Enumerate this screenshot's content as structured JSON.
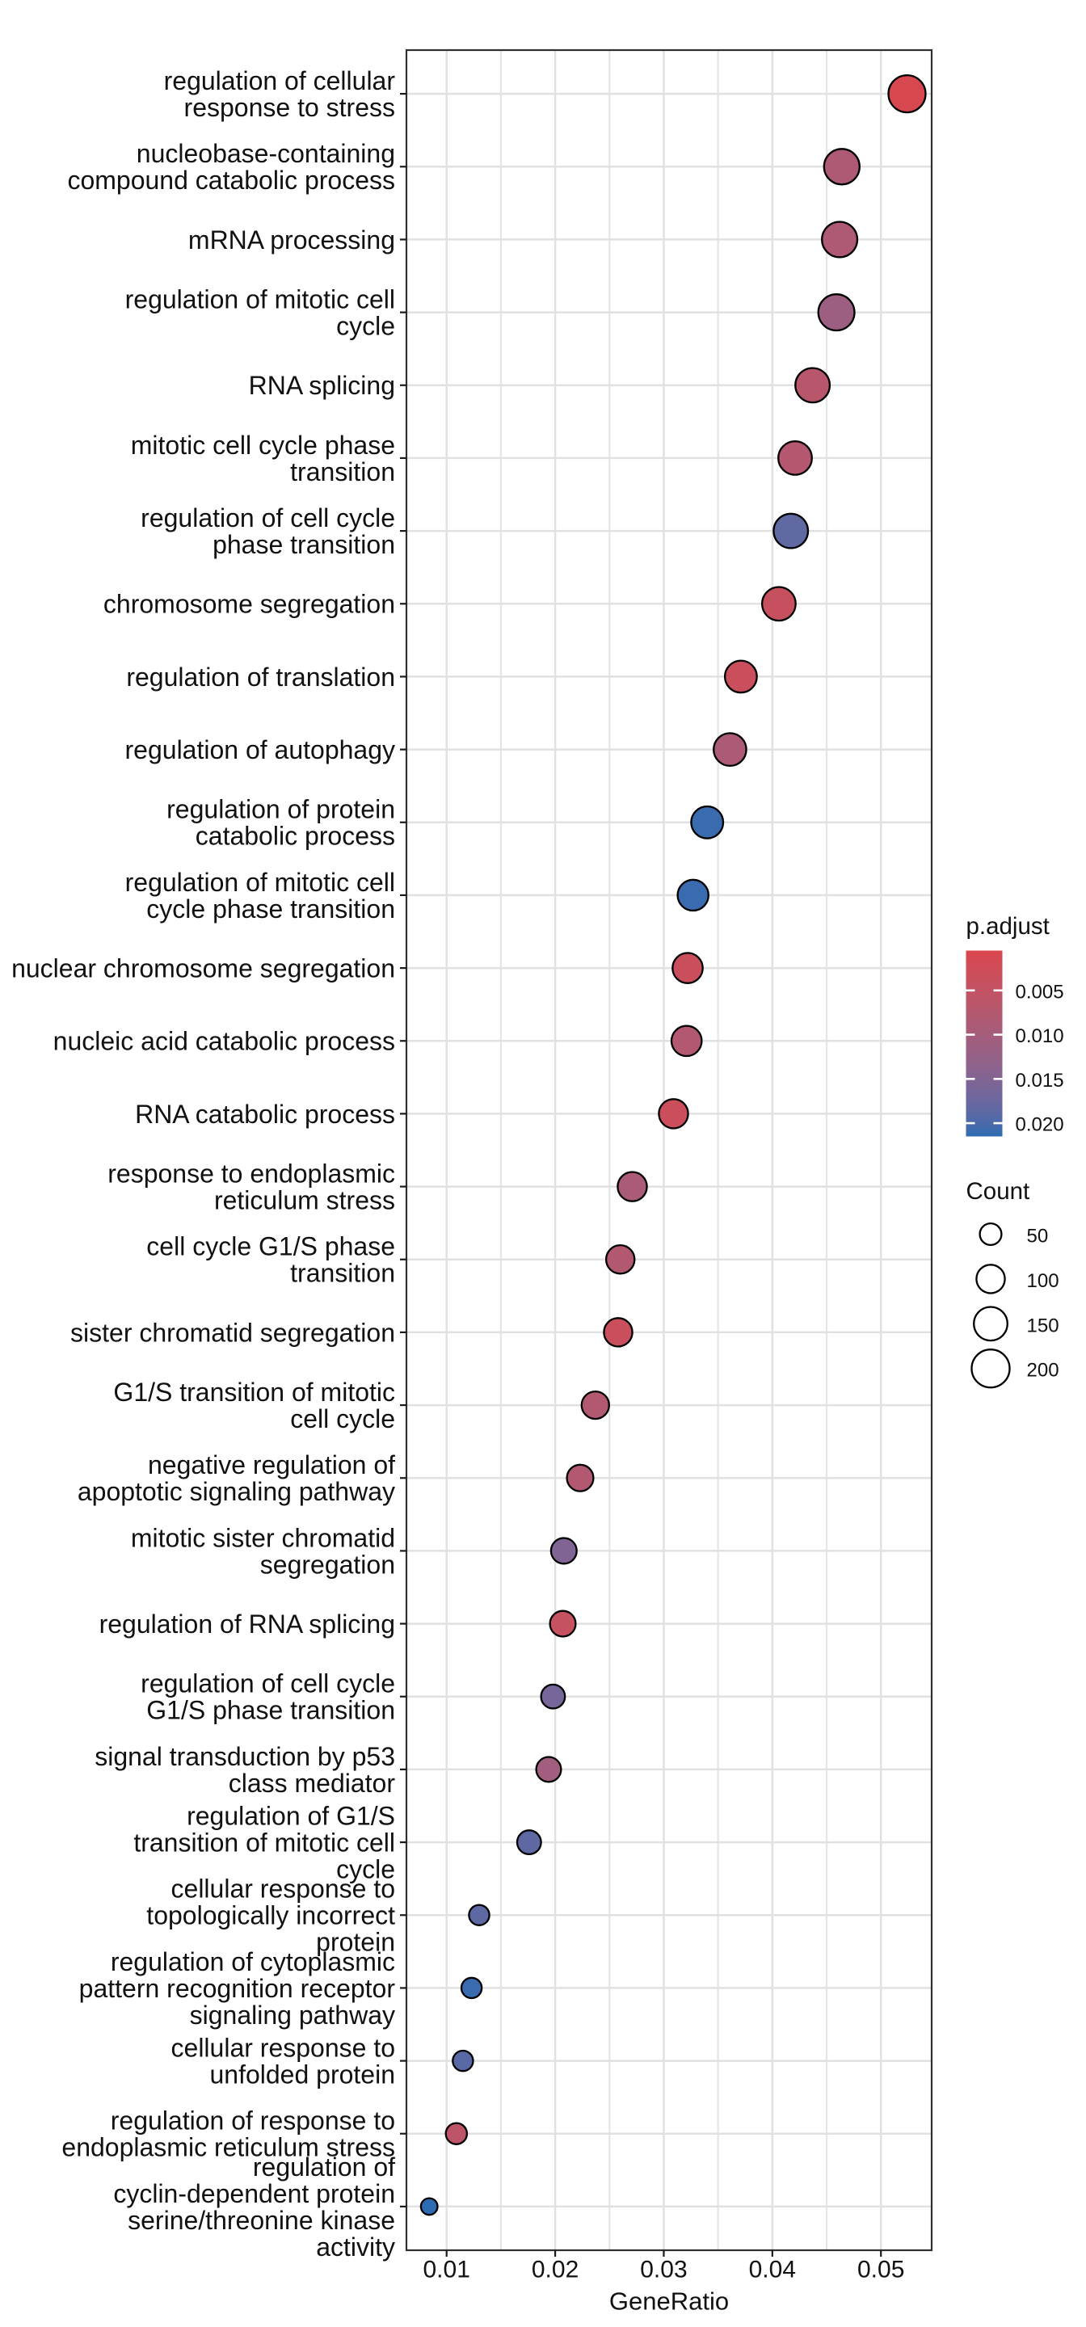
{
  "figure": {
    "background_color": "#ffffff",
    "panel_border_color": "#2f2f2f",
    "grid_major_color": "#e1e1e1",
    "grid_minor_color": "#e5e5e5",
    "tick_color": "#1a1a1a",
    "text_color": "#111111",
    "point_outline_color": "#000000"
  },
  "chart_data": {
    "type": "scatter",
    "subtype": "go-enrichment-dotplot",
    "title": "",
    "xlabel": "GeneRatio",
    "ylabel": "",
    "xlim": [
      0.006301,
      0.054673
    ],
    "x_major_ticks": [
      0.01,
      0.02,
      0.03,
      0.04,
      0.05
    ],
    "x_tick_labels": [
      "0.01",
      "0.02",
      "0.03",
      "0.04",
      "0.05"
    ],
    "x_minor_gridlines": [
      0.015,
      0.025,
      0.035,
      0.045
    ],
    "grid": "on",
    "legend_position": "right",
    "points": [
      {
        "label": "regulation of cellular response to stress",
        "lines": [
          "regulation of cellular",
          "response to stress"
        ],
        "gene_ratio": 0.0524,
        "count": 190,
        "p_adjust": 0.0009
      },
      {
        "label": "nucleobase-containing compound catabolic process",
        "lines": [
          "nucleobase-containing",
          "compound catabolic process"
        ],
        "gene_ratio": 0.0464,
        "count": 170,
        "p_adjust": 0.0085
      },
      {
        "label": "mRNA processing",
        "lines": [
          "mRNA processing"
        ],
        "gene_ratio": 0.0462,
        "count": 168,
        "p_adjust": 0.0085
      },
      {
        "label": "regulation of mitotic cell cycle",
        "lines": [
          "regulation of mitotic cell",
          "cycle"
        ],
        "gene_ratio": 0.0459,
        "count": 178,
        "p_adjust": 0.0114
      },
      {
        "label": "RNA splicing",
        "lines": [
          "RNA splicing"
        ],
        "gene_ratio": 0.0437,
        "count": 158,
        "p_adjust": 0.0068
      },
      {
        "label": "mitotic cell cycle phase transition",
        "lines": [
          "mitotic cell cycle phase",
          "transition"
        ],
        "gene_ratio": 0.0421,
        "count": 150,
        "p_adjust": 0.0074
      },
      {
        "label": "regulation of cell cycle phase transition",
        "lines": [
          "regulation of cell cycle",
          "phase transition"
        ],
        "gene_ratio": 0.0417,
        "count": 158,
        "p_adjust": 0.0184
      },
      {
        "label": "chromosome segregation",
        "lines": [
          "chromosome segregation"
        ],
        "gene_ratio": 0.0406,
        "count": 150,
        "p_adjust": 0.0041
      },
      {
        "label": "regulation of translation",
        "lines": [
          "regulation of translation"
        ],
        "gene_ratio": 0.0371,
        "count": 132,
        "p_adjust": 0.0037
      },
      {
        "label": "regulation of autophagy",
        "lines": [
          "regulation of autophagy"
        ],
        "gene_ratio": 0.0361,
        "count": 140,
        "p_adjust": 0.0089
      },
      {
        "label": "regulation of protein catabolic process",
        "lines": [
          "regulation of protein",
          "catabolic process"
        ],
        "gene_ratio": 0.034,
        "count": 132,
        "p_adjust": 0.0209
      },
      {
        "label": "regulation of mitotic cell cycle phase transition",
        "lines": [
          "regulation of mitotic cell",
          "cycle phase transition"
        ],
        "gene_ratio": 0.0327,
        "count": 122,
        "p_adjust": 0.0209
      },
      {
        "label": "nuclear chromosome segregation",
        "lines": [
          "nuclear chromosome segregation"
        ],
        "gene_ratio": 0.0322,
        "count": 115,
        "p_adjust": 0.0037
      },
      {
        "label": "nucleic acid catabolic process",
        "lines": [
          "nucleic acid catabolic process"
        ],
        "gene_ratio": 0.0321,
        "count": 115,
        "p_adjust": 0.0079
      },
      {
        "label": "RNA catabolic process",
        "lines": [
          "RNA catabolic process"
        ],
        "gene_ratio": 0.0309,
        "count": 106,
        "p_adjust": 0.0034
      },
      {
        "label": "response to endoplasmic reticulum stress",
        "lines": [
          "response to endoplasmic",
          "reticulum stress"
        ],
        "gene_ratio": 0.0271,
        "count": 106,
        "p_adjust": 0.0093
      },
      {
        "label": "cell cycle G1/S phase transition",
        "lines": [
          "cell cycle G1/S phase",
          "transition"
        ],
        "gene_ratio": 0.026,
        "count": 99,
        "p_adjust": 0.0079
      },
      {
        "label": "sister chromatid segregation",
        "lines": [
          "sister chromatid segregation"
        ],
        "gene_ratio": 0.0258,
        "count": 99,
        "p_adjust": 0.0037
      },
      {
        "label": "G1/S transition of mitotic cell cycle",
        "lines": [
          "G1/S transition of mitotic",
          "cell cycle"
        ],
        "gene_ratio": 0.0237,
        "count": 91,
        "p_adjust": 0.0079
      },
      {
        "label": "negative regulation of apoptotic signaling pathway",
        "lines": [
          "negative regulation of",
          "apoptotic signaling pathway"
        ],
        "gene_ratio": 0.0223,
        "count": 84,
        "p_adjust": 0.0079
      },
      {
        "label": "mitotic sister chromatid segregation",
        "lines": [
          "mitotic sister chromatid",
          "segregation"
        ],
        "gene_ratio": 0.0208,
        "count": 77,
        "p_adjust": 0.0152
      },
      {
        "label": "regulation of RNA splicing",
        "lines": [
          "regulation of RNA splicing"
        ],
        "gene_ratio": 0.0207,
        "count": 77,
        "p_adjust": 0.0043
      },
      {
        "label": "regulation of cell cycle G1/S phase transition",
        "lines": [
          "regulation of cell cycle",
          "G1/S phase transition"
        ],
        "gene_ratio": 0.0198,
        "count": 64,
        "p_adjust": 0.0163
      },
      {
        "label": "signal transduction by p53 class mediator",
        "lines": [
          "signal transduction by p53",
          "class mediator"
        ],
        "gene_ratio": 0.0194,
        "count": 71,
        "p_adjust": 0.0106
      },
      {
        "label": "regulation of G1/S transition of mitotic cell cycle",
        "lines": [
          "regulation of G1/S",
          "transition of mitotic cell",
          "cycle"
        ],
        "gene_ratio": 0.0176,
        "count": 64,
        "p_adjust": 0.0186
      },
      {
        "label": "cellular response to topologically incorrect protein",
        "lines": [
          "cellular response to",
          "topologically incorrect",
          "protein"
        ],
        "gene_ratio": 0.013,
        "count": 42,
        "p_adjust": 0.0186
      },
      {
        "label": "regulation of cytoplasmic pattern recognition receptor signaling pathway",
        "lines": [
          "regulation of cytoplasmic",
          "pattern recognition receptor",
          "signaling pathway"
        ],
        "gene_ratio": 0.0123,
        "count": 42,
        "p_adjust": 0.0209
      },
      {
        "label": "cellular response to unfolded protein",
        "lines": [
          "cellular response to",
          "unfolded protein"
        ],
        "gene_ratio": 0.0115,
        "count": 42,
        "p_adjust": 0.019
      },
      {
        "label": "regulation of response to endoplasmic reticulum stress",
        "lines": [
          "regulation of response to",
          "endoplasmic reticulum stress"
        ],
        "gene_ratio": 0.0109,
        "count": 47,
        "p_adjust": 0.0058
      },
      {
        "label": "regulation of cyclin-dependent protein serine/threonine kinase activity",
        "lines": [
          "regulation of",
          "cyclin-dependent protein",
          "serine/threonine kinase",
          "activity"
        ],
        "gene_ratio": 0.0084,
        "count": 24,
        "p_adjust": 0.0215
      }
    ],
    "color_scale": {
      "title": "p.adjust",
      "low_value_color": "#D9464E",
      "high_value_color": "#2D6CB2",
      "domain": [
        0.0005,
        0.0215
      ],
      "ticks": [
        0.005,
        0.01,
        0.015,
        0.02
      ],
      "tick_labels": [
        "0.005",
        "0.010",
        "0.015",
        "0.020"
      ]
    },
    "size_scale": {
      "title": "Count",
      "values": [
        50,
        100,
        150,
        200
      ],
      "labels": [
        "50",
        "100",
        "150",
        "200"
      ]
    }
  }
}
